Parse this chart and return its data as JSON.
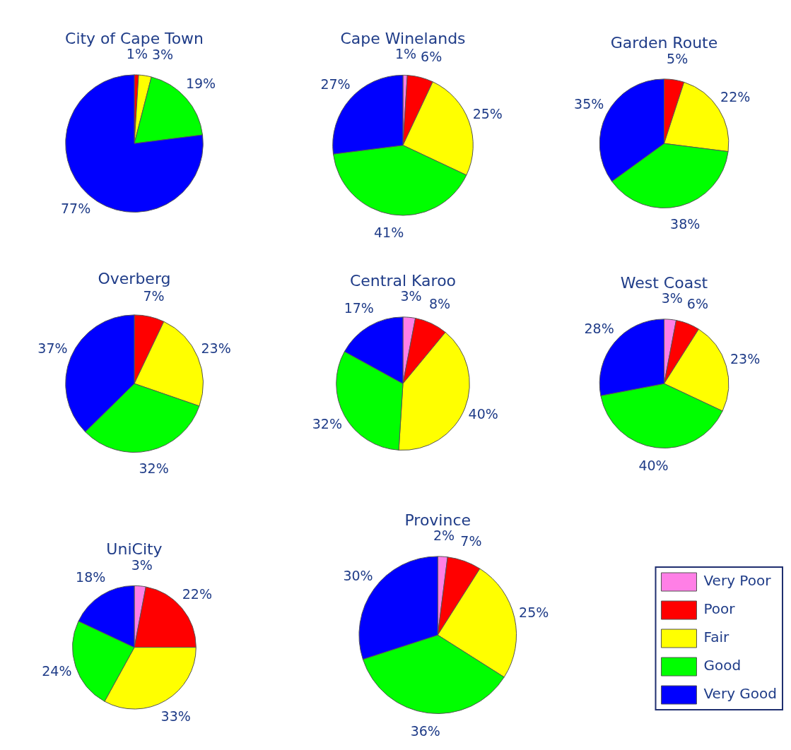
{
  "chart_data": [
    {
      "type": "pie",
      "title": "City of Cape Town",
      "categories": [
        null,
        null,
        null,
        null,
        null
      ],
      "values": [
        null,
        1,
        3,
        19,
        77
      ],
      "value_labels": [
        null,
        "1%",
        "3%",
        "19%",
        "77%"
      ],
      "colors": [
        "#ff7fe6",
        "#ff0000",
        "#ffff00",
        "#00ff00",
        "#0000ff"
      ]
    },
    {
      "type": "pie",
      "title": "Cape Winelands",
      "categories": [
        null,
        null,
        null,
        null,
        null
      ],
      "values": [
        1,
        6,
        25,
        41,
        27
      ],
      "value_labels": [
        "1%",
        "6%",
        "25%",
        "41%",
        "27%"
      ],
      "colors": [
        "#ff7fe6",
        "#ff0000",
        "#ffff00",
        "#00ff00",
        "#0000ff"
      ]
    },
    {
      "type": "pie",
      "title": "Garden Route",
      "categories": [
        null,
        null,
        null,
        null,
        null
      ],
      "values": [
        null,
        5,
        22,
        38,
        35
      ],
      "value_labels": [
        null,
        "5%",
        "22%",
        "38%",
        "35%"
      ],
      "colors": [
        "#ff7fe6",
        "#ff0000",
        "#ffff00",
        "#00ff00",
        "#0000ff"
      ]
    },
    {
      "type": "pie",
      "title": "Overberg",
      "categories": [
        null,
        null,
        null,
        null,
        null
      ],
      "values": [
        null,
        7,
        23,
        32,
        37
      ],
      "value_labels": [
        null,
        "7%",
        "23%",
        "32%",
        "37%"
      ],
      "colors": [
        "#ff7fe6",
        "#ff0000",
        "#ffff00",
        "#00ff00",
        "#0000ff"
      ]
    },
    {
      "type": "pie",
      "title": "Central Karoo",
      "categories": [
        null,
        null,
        null,
        null,
        null
      ],
      "values": [
        3,
        8,
        40,
        32,
        17
      ],
      "value_labels": [
        "3%",
        "8%",
        "40%",
        "32%",
        "17%"
      ],
      "colors": [
        "#ff7fe6",
        "#ff0000",
        "#ffff00",
        "#00ff00",
        "#0000ff"
      ]
    },
    {
      "type": "pie",
      "title": "West Coast",
      "categories": [
        null,
        null,
        null,
        null,
        null
      ],
      "values": [
        3,
        6,
        23,
        40,
        28
      ],
      "value_labels": [
        "3%",
        "6%",
        "23%",
        "40%",
        "28%"
      ],
      "colors": [
        "#ff7fe6",
        "#ff0000",
        "#ffff00",
        "#00ff00",
        "#0000ff"
      ]
    },
    {
      "type": "pie",
      "title": "UniCity",
      "categories": [
        null,
        null,
        null,
        null,
        null
      ],
      "values": [
        3,
        22,
        33,
        24,
        18
      ],
      "value_labels": [
        "3%",
        "22%",
        "33%",
        "24%",
        "18%"
      ],
      "colors": [
        "#ff7fe6",
        "#ff0000",
        "#ffff00",
        "#00ff00",
        "#0000ff"
      ]
    },
    {
      "type": "pie",
      "title": "Province",
      "categories": [
        "Very Poor",
        "Poor",
        "Fair",
        "Good",
        "Very Good"
      ],
      "values": [
        2,
        7,
        25,
        36,
        30
      ],
      "value_labels": [
        "2%",
        "7%",
        "25%",
        "36%",
        "30%"
      ],
      "colors": [
        "#ff7fe6",
        "#ff0000",
        "#ffff00",
        "#00ff00",
        "#0000ff"
      ],
      "legend": "bottom right"
    }
  ]
}
